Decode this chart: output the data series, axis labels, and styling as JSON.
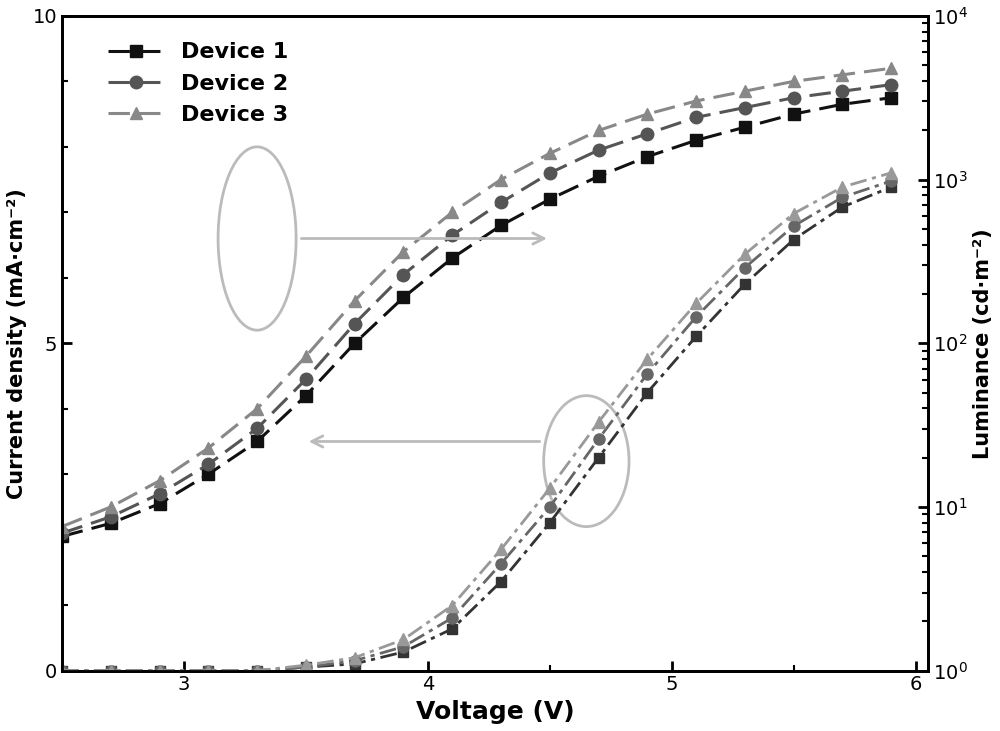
{
  "title": "",
  "xlabel": "Voltage (V)",
  "ylabel_left": "Current density (mA·cm⁻²)",
  "ylabel_right": "Luminance (cd·m⁻²)",
  "xlim": [
    2.5,
    6.05
  ],
  "ylim_left": [
    0,
    10
  ],
  "ylim_right": [
    1,
    10000
  ],
  "devices": [
    "Device 1",
    "Device 2",
    "Device 3"
  ],
  "colors_jv": [
    "#111111",
    "#555555",
    "#888888"
  ],
  "colors_lv": [
    "#333333",
    "#666666",
    "#999999"
  ],
  "voltage": [
    2.5,
    2.7,
    2.9,
    3.1,
    3.3,
    3.5,
    3.7,
    3.9,
    4.1,
    4.3,
    4.5,
    4.7,
    4.9,
    5.1,
    5.3,
    5.5,
    5.7,
    5.9
  ],
  "jv_device1": [
    2.05,
    2.25,
    2.55,
    3.0,
    3.5,
    4.2,
    5.0,
    5.7,
    6.3,
    6.8,
    7.2,
    7.55,
    7.85,
    8.1,
    8.3,
    8.5,
    8.65,
    8.75
  ],
  "jv_device2": [
    2.1,
    2.35,
    2.7,
    3.15,
    3.7,
    4.45,
    5.3,
    6.05,
    6.65,
    7.15,
    7.6,
    7.95,
    8.2,
    8.45,
    8.6,
    8.75,
    8.85,
    8.95
  ],
  "jv_device3": [
    2.2,
    2.5,
    2.9,
    3.4,
    4.0,
    4.8,
    5.65,
    6.4,
    7.0,
    7.5,
    7.9,
    8.25,
    8.5,
    8.7,
    8.85,
    9.0,
    9.1,
    9.2
  ],
  "lv_device1": [
    1.0,
    1.0,
    1.0,
    1.0,
    1.0,
    1.05,
    1.1,
    1.3,
    1.8,
    3.5,
    8.0,
    20,
    50,
    110,
    230,
    430,
    680,
    900
  ],
  "lv_device2": [
    1.0,
    1.0,
    1.0,
    1.0,
    1.0,
    1.05,
    1.15,
    1.4,
    2.1,
    4.5,
    10,
    26,
    65,
    145,
    290,
    520,
    780,
    980
  ],
  "lv_device3": [
    1.0,
    1.0,
    1.0,
    1.0,
    1.0,
    1.08,
    1.2,
    1.55,
    2.5,
    5.5,
    13,
    33,
    80,
    175,
    350,
    620,
    900,
    1100
  ]
}
